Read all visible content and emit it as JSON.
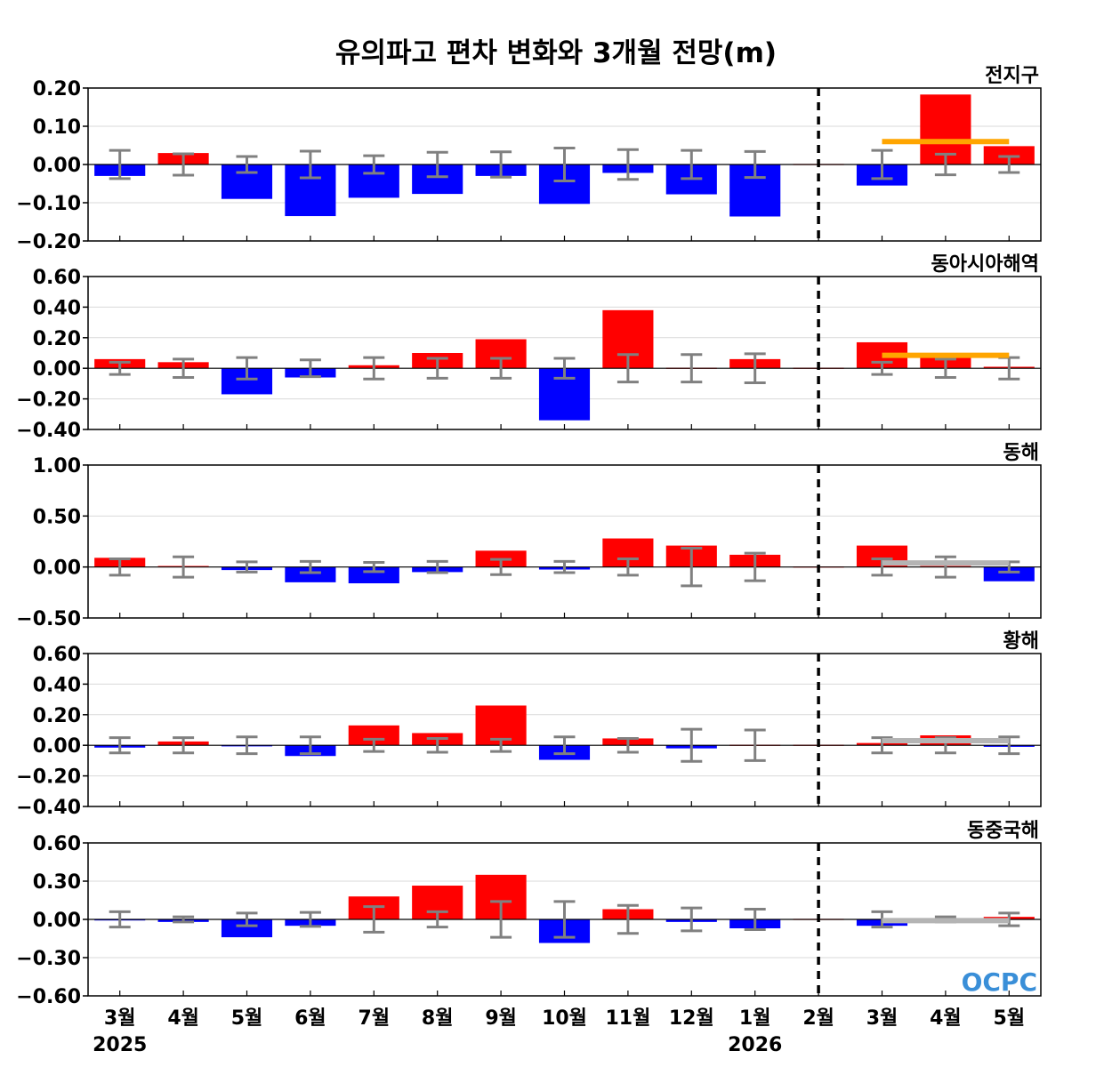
{
  "title": "유의파고 편차 변화와 3개월 전망(m)",
  "logo_text": "OCPC",
  "colors": {
    "positive": "#ff0000",
    "negative": "#0000ff",
    "error_bar": "#808080",
    "forecast_line_global": "#ffa500",
    "forecast_line_gray": "#b4b4b4",
    "divider": "#000000",
    "grid": "#d9d9d9"
  },
  "x_categories": [
    "3월",
    "4월",
    "5월",
    "6월",
    "7월",
    "8월",
    "9월",
    "10월",
    "11월",
    "12월",
    "1월",
    "2월",
    "3월",
    "4월",
    "5월"
  ],
  "year_labels": [
    {
      "index": 0,
      "text": "2025"
    },
    {
      "index": 10,
      "text": "2026"
    }
  ],
  "chart_data": [
    {
      "type": "bar",
      "name": "전지구",
      "categories": [
        "3월",
        "4월",
        "5월",
        "6월",
        "7월",
        "8월",
        "9월",
        "10월",
        "11월",
        "12월",
        "1월",
        "2월",
        "3월",
        "4월",
        "5월"
      ],
      "values": [
        -0.03,
        0.03,
        -0.09,
        -0.135,
        -0.087,
        -0.077,
        -0.03,
        -0.103,
        -0.022,
        -0.078,
        -0.136,
        0,
        -0.055,
        0.183,
        0.048
      ],
      "error": [
        0.037,
        0.028,
        0.021,
        0.035,
        0.023,
        0.032,
        0.033,
        0.043,
        0.039,
        0.037,
        0.034,
        0,
        0.037,
        0.027,
        0.021
      ],
      "forecast_line": {
        "value": 0.06,
        "from_index": 12,
        "to_index": 14,
        "color": "orange"
      },
      "ylim": [
        -0.2,
        0.2
      ],
      "yticks": [
        -0.2,
        -0.1,
        0.0,
        0.1,
        0.2
      ],
      "ytick_labels": [
        "−0.20",
        "−0.10",
        "0.00",
        "0.10",
        "0.20"
      ],
      "grid": true,
      "divider_after_index": 11
    },
    {
      "type": "bar",
      "name": "동아시아해역",
      "categories": [
        "3월",
        "4월",
        "5월",
        "6월",
        "7월",
        "8월",
        "9월",
        "10월",
        "11월",
        "12월",
        "1월",
        "2월",
        "3월",
        "4월",
        "5월"
      ],
      "values": [
        0.06,
        0.04,
        -0.17,
        -0.06,
        0.02,
        0.1,
        0.19,
        -0.34,
        0.38,
        0,
        0.06,
        0,
        0.17,
        0.07,
        0.01
      ],
      "error": [
        0.04,
        0.06,
        0.07,
        0.055,
        0.07,
        0.065,
        0.065,
        0.065,
        0.09,
        0.09,
        0.095,
        0,
        0.04,
        0.06,
        0.07
      ],
      "forecast_line": {
        "value": 0.085,
        "from_index": 12,
        "to_index": 14,
        "color": "orange"
      },
      "ylim": [
        -0.4,
        0.6
      ],
      "yticks": [
        -0.4,
        -0.2,
        0.0,
        0.2,
        0.4,
        0.6
      ],
      "ytick_labels": [
        "−0.40",
        "−0.20",
        "0.00",
        "0.20",
        "0.40",
        "0.60"
      ],
      "grid": true,
      "divider_after_index": 11
    },
    {
      "type": "bar",
      "name": "동해",
      "categories": [
        "3월",
        "4월",
        "5월",
        "6월",
        "7월",
        "8월",
        "9월",
        "10월",
        "11월",
        "12월",
        "1월",
        "2월",
        "3월",
        "4월",
        "5월"
      ],
      "values": [
        0.09,
        0.01,
        -0.03,
        -0.15,
        -0.16,
        -0.05,
        0.16,
        -0.025,
        0.28,
        0.21,
        0.12,
        0,
        0.21,
        0.01,
        -0.14
      ],
      "error": [
        0.08,
        0.1,
        0.05,
        0.055,
        0.045,
        0.055,
        0.075,
        0.055,
        0.08,
        0.185,
        0.135,
        0,
        0.08,
        0.1,
        0.05
      ],
      "forecast_line": {
        "value": 0.04,
        "from_index": 12,
        "to_index": 14,
        "color": "gray"
      },
      "ylim": [
        -0.5,
        1.0
      ],
      "yticks": [
        -0.5,
        0.0,
        0.5,
        1.0
      ],
      "ytick_labels": [
        "−0.50",
        "0.00",
        "0.50",
        "1.00"
      ],
      "grid": true,
      "divider_after_index": 11
    },
    {
      "type": "bar",
      "name": "황해",
      "categories": [
        "3월",
        "4월",
        "5월",
        "6월",
        "7월",
        "8월",
        "9월",
        "10월",
        "11월",
        "12월",
        "1월",
        "2월",
        "3월",
        "4월",
        "5월"
      ],
      "values": [
        -0.015,
        0.025,
        -0.005,
        -0.07,
        0.13,
        0.08,
        0.26,
        -0.095,
        0.045,
        -0.02,
        0,
        0,
        0.015,
        0.065,
        -0.01
      ],
      "error": [
        0.05,
        0.05,
        0.055,
        0.055,
        0.04,
        0.045,
        0.04,
        0.055,
        0.045,
        0.105,
        0.1,
        0,
        0.05,
        0.05,
        0.055
      ],
      "forecast_line": {
        "value": 0.03,
        "from_index": 12,
        "to_index": 14,
        "color": "gray"
      },
      "ylim": [
        -0.4,
        0.6
      ],
      "yticks": [
        -0.4,
        -0.2,
        0.0,
        0.2,
        0.4,
        0.6
      ],
      "ytick_labels": [
        "−0.40",
        "−0.20",
        "0.00",
        "0.20",
        "0.40",
        "0.60"
      ],
      "grid": true,
      "divider_after_index": 11
    },
    {
      "type": "bar",
      "name": "동중국해",
      "categories": [
        "3월",
        "4월",
        "5월",
        "6월",
        "7월",
        "8월",
        "9월",
        "10월",
        "11월",
        "12월",
        "1월",
        "2월",
        "3월",
        "4월",
        "5월"
      ],
      "values": [
        -0.005,
        -0.02,
        -0.14,
        -0.05,
        0.18,
        0.265,
        0.35,
        -0.185,
        0.08,
        -0.02,
        -0.07,
        0,
        -0.05,
        -0.02,
        0.02
      ],
      "error": [
        0.06,
        0.02,
        0.05,
        0.055,
        0.1,
        0.06,
        0.14,
        0.14,
        0.11,
        0.09,
        0.08,
        0,
        0.06,
        0.02,
        0.05
      ],
      "forecast_line": {
        "value": -0.01,
        "from_index": 12,
        "to_index": 14,
        "color": "gray"
      },
      "ylim": [
        -0.6,
        0.6
      ],
      "yticks": [
        -0.6,
        -0.3,
        0.0,
        0.3,
        0.6
      ],
      "ytick_labels": [
        "−0.60",
        "−0.30",
        "0.00",
        "0.30",
        "0.60"
      ],
      "grid": true,
      "divider_after_index": 11
    }
  ]
}
